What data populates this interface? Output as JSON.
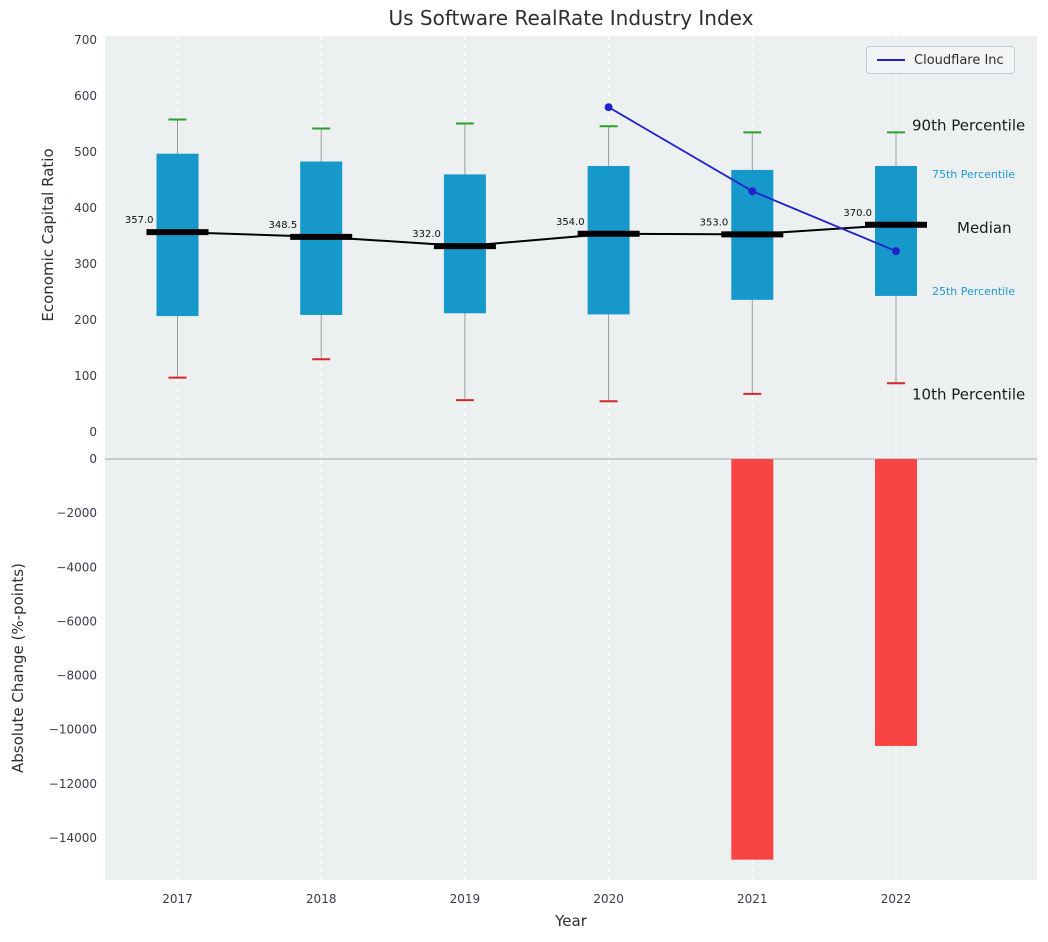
{
  "title": "Us Software RealRate Industry Index",
  "legend": {
    "label": "Cloudflare Inc",
    "line_color": "#2222cc"
  },
  "colors": {
    "plot_bg": "#edf0f1",
    "grid": "#ffffff",
    "box_fill": "#1798ca",
    "cap_high": "#2ca02c",
    "cap_low": "#d62728",
    "median": "#000000",
    "whisker": "#9a9a9a",
    "bar_negative": "#f94444",
    "series_line": "#2222cc",
    "tick_text": "#3b3b4f",
    "zero_line": "#a8a8a8"
  },
  "chart_data": [
    {
      "type": "boxplot+line",
      "title": "Us Software RealRate Industry Index",
      "ylabel": "Economic Capital Ratio",
      "ylim": [
        0,
        700
      ],
      "yticks": [
        0,
        100,
        200,
        300,
        400,
        500,
        600,
        700
      ],
      "grid": "vertical-dashed-white",
      "legend_position": "upper right",
      "categories": [
        "2017",
        "2018",
        "2019",
        "2020",
        "2021",
        "2022"
      ],
      "box": {
        "p10": [
          97,
          130,
          57,
          55,
          68,
          87
        ],
        "p25": [
          207,
          209,
          212,
          210,
          236,
          243
        ],
        "median": [
          357,
          348.5,
          332,
          354,
          353,
          370
        ],
        "p75": [
          497,
          483,
          460,
          475,
          468,
          475
        ],
        "p90": [
          558,
          542,
          551,
          546,
          535,
          535
        ]
      },
      "median_labels": [
        "357.0",
        "348.5",
        "332.0",
        "354.0",
        "353.0",
        "370.0"
      ],
      "series": [
        {
          "name": "Cloudflare Inc",
          "x": [
            "2020",
            "2021",
            "2022"
          ],
          "values": [
            580,
            430,
            323
          ]
        }
      ],
      "annotations": [
        {
          "label": "90th Percentile",
          "x": 912,
          "value": 535,
          "dy": -6,
          "color": "#1a1a1a",
          "size": 15
        },
        {
          "label": "75th Percentile",
          "x": 932,
          "value": 475,
          "dy": 8,
          "color": "#1f9bcf",
          "size": 11
        },
        {
          "label": "Median",
          "x": 957,
          "value": 370,
          "dy": 4,
          "color": "#1a1a1a",
          "size": 15
        },
        {
          "label": "25th Percentile",
          "x": 932,
          "value": 243,
          "dy": -5,
          "color": "#1f9bcf",
          "size": 11
        },
        {
          "label": "10th Percentile",
          "x": 912,
          "value": 87,
          "dy": 12,
          "color": "#1a1a1a",
          "size": 15
        }
      ]
    },
    {
      "type": "bar",
      "ylabel": "Absolute Change (%-points)",
      "xlabel": "Year",
      "ylim": [
        -15600,
        0
      ],
      "yticks": [
        0,
        -2000,
        -4000,
        -6000,
        -8000,
        -10000,
        -12000,
        -14000
      ],
      "categories": [
        "2017",
        "2018",
        "2019",
        "2020",
        "2021",
        "2022"
      ],
      "values": [
        0,
        0,
        0,
        0,
        -14800,
        -10600
      ]
    }
  ]
}
